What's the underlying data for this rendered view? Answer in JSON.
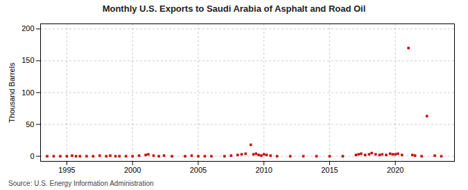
{
  "chart_data": {
    "type": "scatter",
    "title": "Monthly U.S. Exports to Saudi Arabia of Asphalt and Road Oil",
    "ylabel": "Thousand Barrels",
    "source": "Source: U.S. Energy Information Administration",
    "x": [
      1993.5,
      1994.0,
      1994.5,
      1995.0,
      1995.4,
      1995.7,
      1996.0,
      1996.5,
      1997.0,
      1997.5,
      1998.0,
      1998.3,
      1998.7,
      1999.0,
      1999.5,
      2000.0,
      2000.5,
      2001.0,
      2001.2,
      2001.6,
      2002.0,
      2002.4,
      2003.0,
      2004.0,
      2004.5,
      2005.0,
      2005.5,
      2006.0,
      2007.0,
      2007.5,
      2008.0,
      2008.3,
      2008.6,
      2009.0,
      2009.2,
      2009.4,
      2009.6,
      2009.8,
      2010.0,
      2010.2,
      2010.5,
      2011.0,
      2012.0,
      2013.0,
      2014.0,
      2015.0,
      2016.0,
      2017.0,
      2017.2,
      2017.4,
      2017.7,
      2018.0,
      2018.2,
      2018.5,
      2018.8,
      2019.0,
      2019.3,
      2019.6,
      2019.8,
      2020.0,
      2020.2,
      2020.5,
      2021.0,
      2021.3,
      2021.5,
      2022.0,
      2022.4,
      2023.0,
      2023.5
    ],
    "values": [
      0,
      0,
      0,
      0,
      1,
      0,
      0,
      0,
      0,
      1,
      0,
      1,
      0,
      0,
      0,
      0,
      1,
      2,
      3,
      1,
      0,
      1,
      0,
      0,
      1,
      0,
      0,
      0,
      0,
      1,
      2,
      3,
      4,
      18,
      3,
      4,
      2,
      1,
      3,
      2,
      1,
      0,
      0,
      0,
      0,
      0,
      0,
      2,
      3,
      4,
      2,
      3,
      5,
      3,
      2,
      3,
      2,
      4,
      3,
      3,
      4,
      2,
      170,
      2,
      1,
      0,
      63,
      1,
      0
    ],
    "xlim": [
      1993.0,
      2024.5
    ],
    "xticks": [
      1995,
      2000,
      2005,
      2010,
      2015,
      2020
    ],
    "ylim": [
      -8,
      208
    ],
    "yticks": [
      0,
      50,
      100,
      150,
      200
    ],
    "color": "#cc0000",
    "marker": "square",
    "grid": true
  }
}
